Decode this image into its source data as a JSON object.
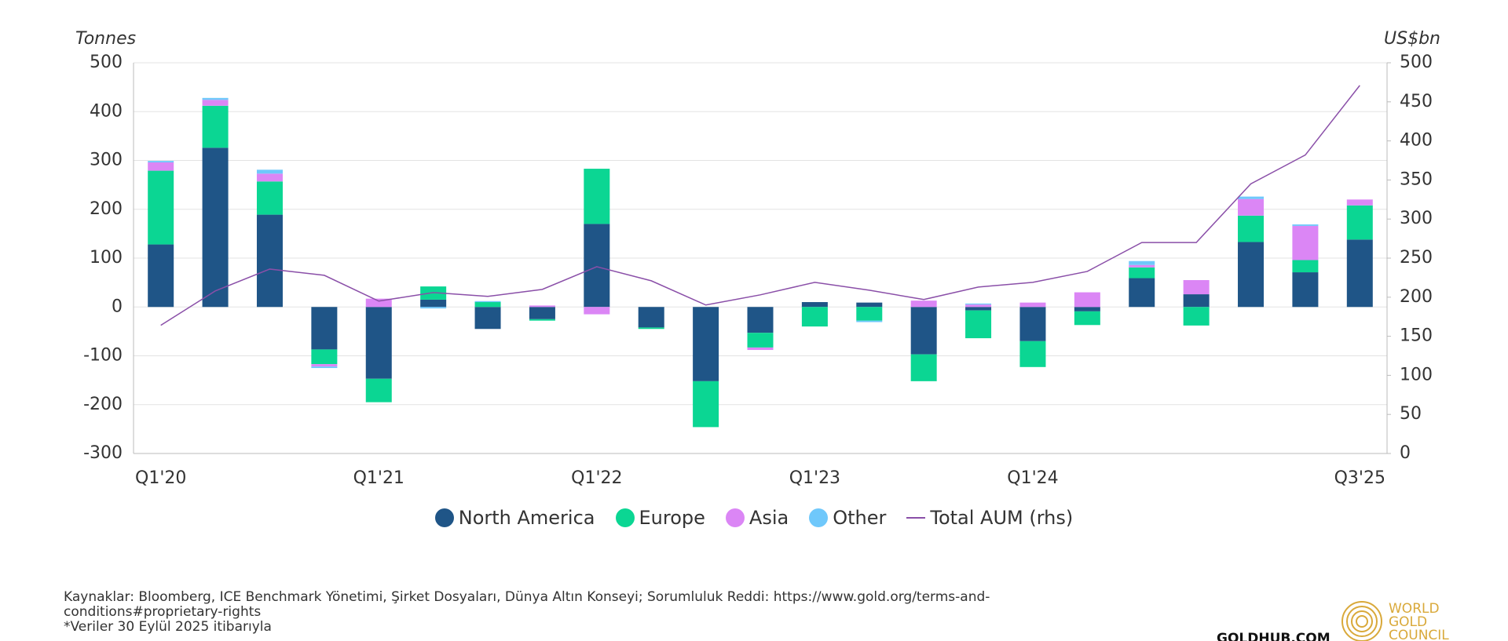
{
  "chart_data": {
    "type": "bar",
    "y_label": "Tonnes",
    "y2_label": "US$bn",
    "categories": [
      "Q1'20",
      null,
      null,
      null,
      "Q1'21",
      null,
      null,
      null,
      "Q1'22",
      null,
      null,
      null,
      "Q1'23",
      null,
      null,
      null,
      "Q1'24",
      null,
      null,
      null,
      null,
      null,
      "Q3'25"
    ],
    "series": [
      {
        "name": "North America",
        "color": "#1f5587",
        "values": [
          128,
          326,
          189,
          -87,
          -147,
          15,
          -45,
          -25,
          170,
          -42,
          -152,
          -53,
          10,
          9,
          -97,
          -7,
          -70,
          -9,
          59,
          26,
          133,
          71,
          138
        ]
      },
      {
        "name": "Europe",
        "color": "#0bd693",
        "values": [
          151,
          86,
          68,
          -30,
          -48,
          27,
          10,
          -3,
          113,
          -3,
          -94,
          -30,
          -40,
          -28,
          -55,
          -57,
          -53,
          -28,
          22,
          -38,
          54,
          25,
          70
        ]
      },
      {
        "name": "Asia",
        "color": "#db86f5",
        "values": [
          17,
          12,
          16,
          -5,
          17,
          0,
          0,
          3,
          -15,
          0,
          0,
          -5,
          0,
          0,
          13,
          5,
          9,
          30,
          5,
          29,
          34,
          70,
          12
        ]
      },
      {
        "name": "Other",
        "color": "#6fc8fb",
        "values": [
          3,
          4,
          8,
          -3,
          0,
          -3,
          2,
          0,
          0,
          0,
          0,
          0,
          0,
          -3,
          0,
          2,
          0,
          0,
          8,
          0,
          5,
          3,
          0
        ]
      },
      {
        "name": "Total AUM (rhs)",
        "color": "#8a4fa8",
        "axis": "y2",
        "type": "line",
        "values": [
          164,
          208,
          236,
          228,
          195,
          206,
          201,
          210,
          239,
          221,
          190,
          203,
          219,
          209,
          197,
          213,
          219,
          233,
          270,
          270,
          345,
          382,
          471
        ]
      }
    ],
    "ylim": [
      -300,
      500
    ],
    "yticks": [
      -300,
      -200,
      -100,
      0,
      100,
      200,
      300,
      400,
      500
    ],
    "y2lim": [
      0,
      500
    ],
    "y2ticks": [
      0,
      50,
      100,
      150,
      200,
      250,
      300,
      350,
      400,
      450,
      500
    ],
    "grid": true,
    "legend": "bottom"
  },
  "footer": {
    "source": "Kaynaklar: Bloomberg, ICE Benchmark Yönetimi, Şirket Dosyaları, Dünya Altın Konseyi; Sorumluluk Reddi: https://www.gold.org/terms-and-conditions#proprietary-rights",
    "note": "*Veriler 30 Eylül 2025 itibarıyla",
    "site": "GOLDHUB.COM",
    "logo": [
      "WORLD",
      "GOLD",
      "COUNCIL"
    ]
  }
}
